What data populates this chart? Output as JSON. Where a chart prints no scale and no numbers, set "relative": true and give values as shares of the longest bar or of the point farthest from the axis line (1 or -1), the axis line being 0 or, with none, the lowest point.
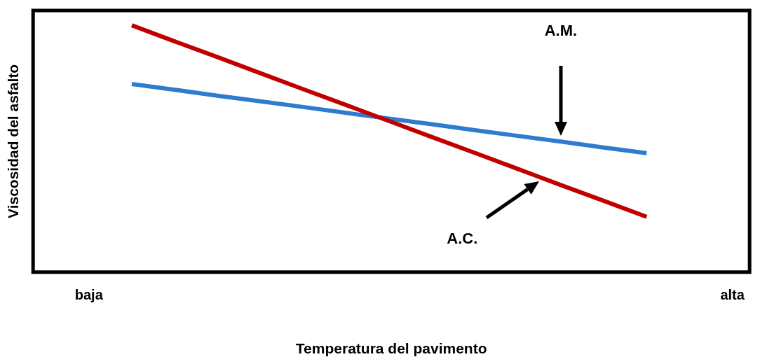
{
  "chart_data": {
    "type": "line",
    "relative": true,
    "xlabel": "Temperatura del pavimento",
    "ylabel": "Viscosidad del asfalto",
    "categories": [
      "baja",
      null,
      null,
      null,
      null,
      null,
      null,
      null,
      null,
      null,
      null,
      null,
      null,
      null,
      null,
      "alta"
    ],
    "series": [
      {
        "color": "#c00000",
        "values": [
          null,
          1,
          0.935,
          0.871,
          0.806,
          0.741,
          0.677,
          0.612,
          0.547,
          0.483,
          0.418,
          0.353,
          0.289,
          0.224,
          null,
          null
        ]
      },
      {
        "color": "#2e7bcf",
        "values": [
          null,
          0.762,
          0.739,
          0.715,
          0.692,
          0.669,
          0.645,
          0.622,
          0.599,
          0.575,
          0.552,
          0.529,
          0.505,
          0.482,
          null,
          null
        ]
      }
    ],
    "annotations": [
      "A.M.",
      "A.C."
    ],
    "legend": false,
    "grid": false,
    "marker": "none",
    "line_style": "solid"
  }
}
